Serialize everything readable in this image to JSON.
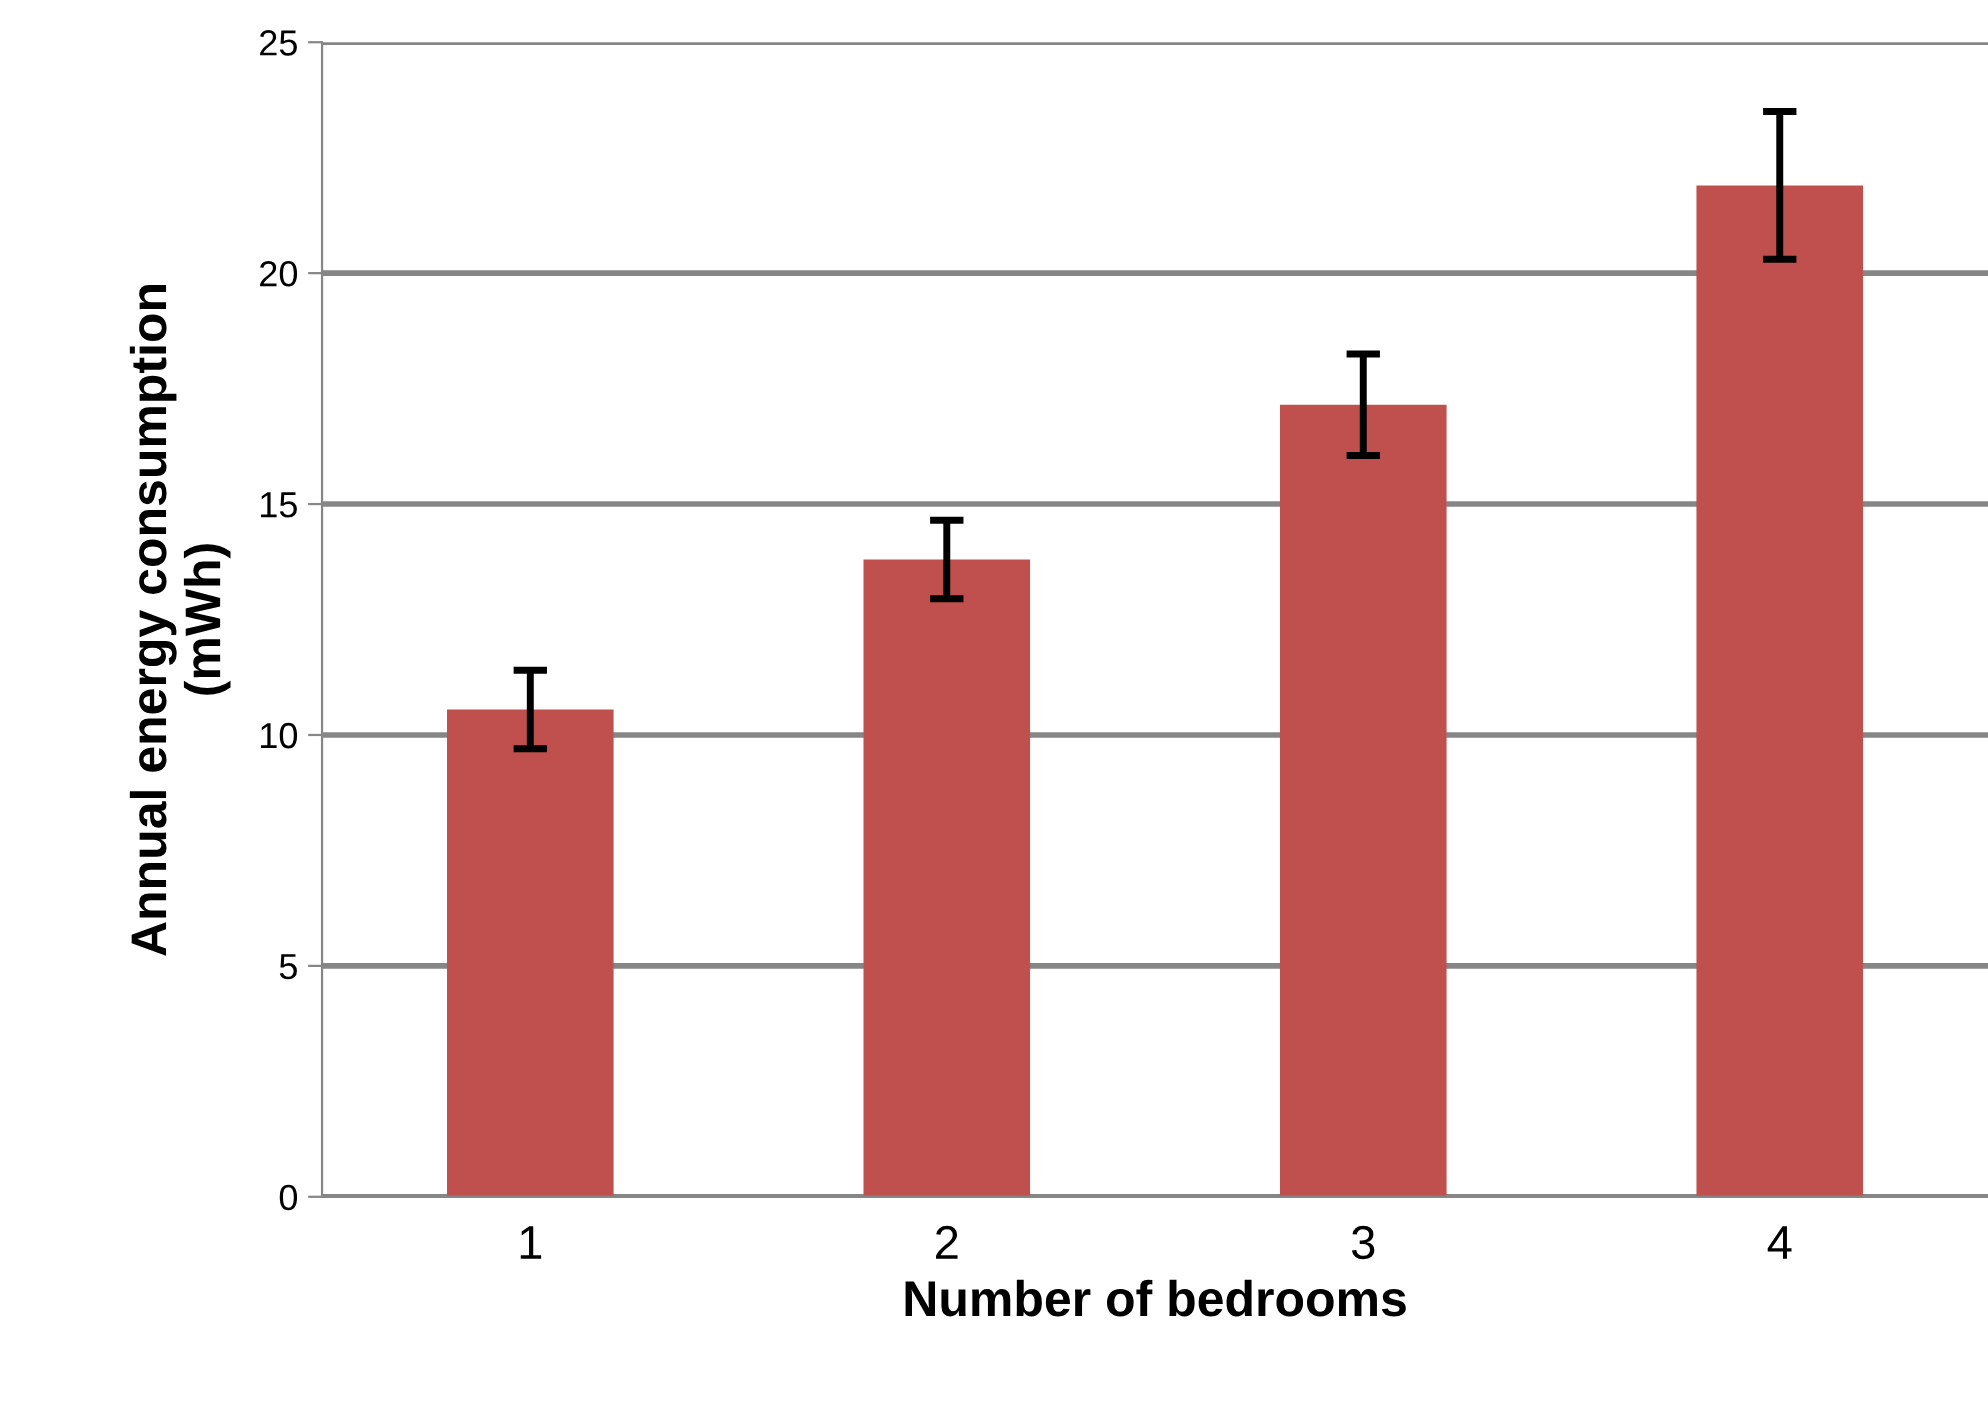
{
  "chart_data": {
    "type": "bar",
    "xlabel": "Number of bedrooms",
    "ylabel": "Annual energy consumption\n(mWh)",
    "categories": [
      "1",
      "2",
      "3",
      "4"
    ],
    "values": [
      10.55,
      13.8,
      17.15,
      21.9
    ],
    "errors": [
      0.85,
      0.85,
      1.1,
      1.6
    ],
    "color": "#c0504d",
    "ylim": [
      0,
      25
    ],
    "yticks": [
      0,
      5,
      10,
      15,
      20,
      25
    ],
    "grid": "y",
    "legend": false
  }
}
